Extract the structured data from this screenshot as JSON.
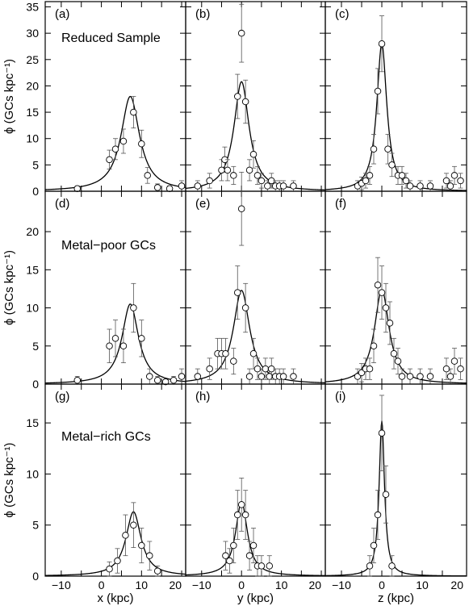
{
  "chart_data": {
    "type": "scatter",
    "grid": false,
    "xlabels": [
      "x (kpc)",
      "y (kpc)",
      "z (kpc)"
    ],
    "ylabel": "ϕ (GCs kpc⁻¹)",
    "x_ticks": [
      -10,
      -5,
      0,
      5,
      10,
      15,
      20
    ],
    "x_ticks_last_column": [
      -10,
      -5,
      0,
      5,
      10,
      15
    ],
    "x_tick_labels": [
      "−10",
      "0",
      "10",
      "20"
    ],
    "x_tick_labels_last_column": [
      "−10",
      "0",
      "10",
      "20"
    ],
    "rows": [
      {
        "label": "Reduced Sample",
        "ylim": [
          0,
          36
        ],
        "yticks": [
          0,
          5,
          10,
          15,
          20,
          25,
          30,
          35
        ],
        "ytick_labels": [
          "0",
          "5",
          "10",
          "15",
          "20",
          "25",
          "30",
          "35"
        ],
        "panels": [
          {
            "tag": "(a)",
            "axis": "x",
            "xlim": [
              -14,
              21
            ],
            "peak_x": 7.2,
            "fit": {
              "A": 18.0,
              "x0": 7.2,
              "w": 2.8
            },
            "points": [
              [
                -6,
                0.5,
                0.5
              ],
              [
                2,
                6,
                1.8
              ],
              [
                3.5,
                8,
                2
              ],
              [
                5.5,
                9.5,
                2.3
              ],
              [
                8,
                15,
                3
              ],
              [
                10,
                9,
                2.6
              ],
              [
                11.5,
                3,
                1.5
              ],
              [
                14,
                0.7,
                0.7
              ],
              [
                17,
                0.5,
                0.5
              ],
              [
                20,
                1,
                1
              ]
            ]
          },
          {
            "tag": "(b)",
            "axis": "y",
            "xlim": [
              -14,
              21
            ],
            "peak_x": 0.0,
            "fit": {
              "A": 20.8,
              "x0": 0.0,
              "w": 2.3
            },
            "points": [
              [
                -11,
                1,
                1
              ],
              [
                -8,
                2,
                1.4
              ],
              [
                -5,
                4,
                2
              ],
              [
                -4.2,
                6,
                2.4
              ],
              [
                -3.5,
                4,
                2
              ],
              [
                -2,
                3,
                1.7
              ],
              [
                -1,
                18,
                4.2
              ],
              [
                0,
                30,
                5.5
              ],
              [
                1,
                17,
                4.1
              ],
              [
                2,
                4,
                2
              ],
              [
                3,
                7,
                2.6
              ],
              [
                4,
                3,
                1.7
              ],
              [
                5,
                2,
                1.4
              ],
              [
                6.5,
                1,
                1
              ],
              [
                7.5,
                2,
                1.4
              ],
              [
                8.5,
                1,
                1
              ],
              [
                9.5,
                1,
                1
              ],
              [
                10.5,
                1,
                1
              ],
              [
                13,
                1,
                1
              ]
            ]
          },
          {
            "tag": "(c)",
            "axis": "z",
            "xlim": [
              -14,
              21
            ],
            "peak_x": 0.0,
            "fit": {
              "A": 28.0,
              "x0": 0.0,
              "w": 1.5
            },
            "points": [
              [
                -6,
                1,
                1
              ],
              [
                -5,
                1.5,
                1.2
              ],
              [
                -4,
                2,
                1.4
              ],
              [
                -3,
                3,
                1.7
              ],
              [
                -2,
                8,
                2.8
              ],
              [
                -1,
                19,
                4.3
              ],
              [
                0,
                28,
                5.3
              ],
              [
                1.5,
                8,
                2.8
              ],
              [
                2.5,
                5,
                2.2
              ],
              [
                4,
                3,
                1.7
              ],
              [
                5,
                3,
                1.7
              ],
              [
                6,
                2,
                1.4
              ],
              [
                7,
                1,
                1
              ],
              [
                9.5,
                1,
                1
              ],
              [
                12,
                1,
                1
              ],
              [
                16,
                2,
                1.4
              ],
              [
                17,
                1,
                1
              ],
              [
                18,
                3,
                1.7
              ],
              [
                19.5,
                2,
                1.4
              ]
            ]
          }
        ]
      },
      {
        "label": "Metal−poor GCs",
        "ylim": [
          0,
          25.3
        ],
        "yticks": [
          0,
          5,
          10,
          15,
          20
        ],
        "ytick_labels": [
          "0",
          "5",
          "10",
          "15",
          "20"
        ],
        "panels": [
          {
            "tag": "(d)",
            "axis": "x",
            "xlim": [
              -14,
              21
            ],
            "peak_x": 7.2,
            "fit": {
              "A": 10.5,
              "x0": 7.2,
              "w": 2.5
            },
            "points": [
              [
                -6,
                0.5,
                0.5
              ],
              [
                2,
                5,
                2.2
              ],
              [
                3.5,
                6,
                2.4
              ],
              [
                5.5,
                5,
                2.2
              ],
              [
                8,
                10,
                3.2
              ],
              [
                10,
                6,
                2.4
              ],
              [
                12,
                1,
                1
              ],
              [
                14,
                0.5,
                0.5
              ],
              [
                16,
                0.3,
                0.3
              ],
              [
                18,
                0.5,
                0.5
              ],
              [
                20,
                1,
                1
              ]
            ]
          },
          {
            "tag": "(e)",
            "axis": "y",
            "xlim": [
              -14,
              21
            ],
            "peak_x": 0.0,
            "fit": {
              "A": 12.3,
              "x0": 0.0,
              "w": 2.5
            },
            "points": [
              [
                -11,
                1,
                1
              ],
              [
                -8,
                2,
                1.4
              ],
              [
                -6,
                4,
                2
              ],
              [
                -5,
                4,
                2
              ],
              [
                -4,
                4,
                2
              ],
              [
                -2,
                3,
                1.7
              ],
              [
                -1,
                12,
                3.5
              ],
              [
                0,
                23,
                4.8
              ],
              [
                1,
                10,
                3.2
              ],
              [
                2,
                1,
                1
              ],
              [
                3,
                4,
                2
              ],
              [
                4,
                2,
                1.4
              ],
              [
                5,
                1,
                1
              ],
              [
                6,
                2,
                1.4
              ],
              [
                7,
                1,
                1
              ],
              [
                7.5,
                2,
                1.4
              ],
              [
                8.5,
                1,
                1
              ],
              [
                9.5,
                1,
                1
              ],
              [
                10.5,
                1,
                1
              ],
              [
                13,
                1,
                1
              ]
            ]
          },
          {
            "tag": "(f)",
            "axis": "z",
            "xlim": [
              -14,
              21
            ],
            "peak_x": 0.0,
            "fit": {
              "A": 12.4,
              "x0": 0.0,
              "w": 2.2
            },
            "points": [
              [
                -6,
                1,
                1
              ],
              [
                -5,
                1.5,
                1.2
              ],
              [
                -4,
                2,
                1.4
              ],
              [
                -3,
                2,
                1.4
              ],
              [
                -2,
                5,
                2.2
              ],
              [
                -1,
                13,
                3.6
              ],
              [
                0,
                12,
                3.5
              ],
              [
                1,
                10,
                3.2
              ],
              [
                2,
                8,
                2.8
              ],
              [
                3,
                4,
                2
              ],
              [
                4,
                3,
                1.7
              ],
              [
                5,
                1,
                1
              ],
              [
                7,
                1,
                1
              ],
              [
                9.5,
                1,
                1
              ],
              [
                12,
                1,
                1
              ],
              [
                16,
                2,
                1.4
              ],
              [
                17,
                1,
                1
              ],
              [
                18,
                3,
                1.7
              ],
              [
                19.5,
                2,
                1.4
              ]
            ]
          }
        ]
      },
      {
        "label": "Metal−rich GCs",
        "ylim": [
          0,
          18.8
        ],
        "yticks": [
          0,
          5,
          10,
          15
        ],
        "ytick_labels": [
          "0",
          "5",
          "10",
          "15"
        ],
        "panels": [
          {
            "tag": "(g)",
            "axis": "x",
            "xlim": [
              -14,
              21
            ],
            "peak_x": 8.0,
            "fit": {
              "A": 6.3,
              "x0": 8.0,
              "w": 2.3
            },
            "points": [
              [
                2,
                0.7,
                0.7
              ],
              [
                4,
                1.5,
                1.2
              ],
              [
                6,
                4,
                2
              ],
              [
                8,
                5,
                2.2
              ],
              [
                10,
                3,
                1.7
              ],
              [
                12,
                2,
                1.4
              ],
              [
                14,
                0.5,
                0.5
              ]
            ]
          },
          {
            "tag": "(h)",
            "axis": "y",
            "xlim": [
              -14,
              21
            ],
            "peak_x": 0.0,
            "fit": {
              "A": 7.3,
              "x0": 0.0,
              "w": 1.8
            },
            "points": [
              [
                -4,
                2,
                1.4
              ],
              [
                -3,
                1.5,
                1.2
              ],
              [
                -2,
                3,
                1.7
              ],
              [
                -1,
                6,
                2.4
              ],
              [
                0,
                7,
                2.6
              ],
              [
                1,
                6,
                2.4
              ],
              [
                2,
                2,
                1.4
              ],
              [
                3,
                3,
                1.7
              ],
              [
                4,
                1,
                1
              ],
              [
                5,
                1,
                1
              ],
              [
                7,
                1,
                1
              ]
            ]
          },
          {
            "tag": "(i)",
            "axis": "z",
            "xlim": [
              -14,
              21
            ],
            "peak_x": 0.0,
            "fit": {
              "A": 15.2,
              "x0": 0.0,
              "w": 0.8
            },
            "points": [
              [
                -3,
                1,
                1
              ],
              [
                -2,
                3,
                1.7
              ],
              [
                -1,
                6,
                2.4
              ],
              [
                0,
                14,
                3.7
              ],
              [
                1,
                8,
                2.8
              ],
              [
                2.5,
                1,
                1
              ]
            ]
          }
        ]
      }
    ]
  }
}
